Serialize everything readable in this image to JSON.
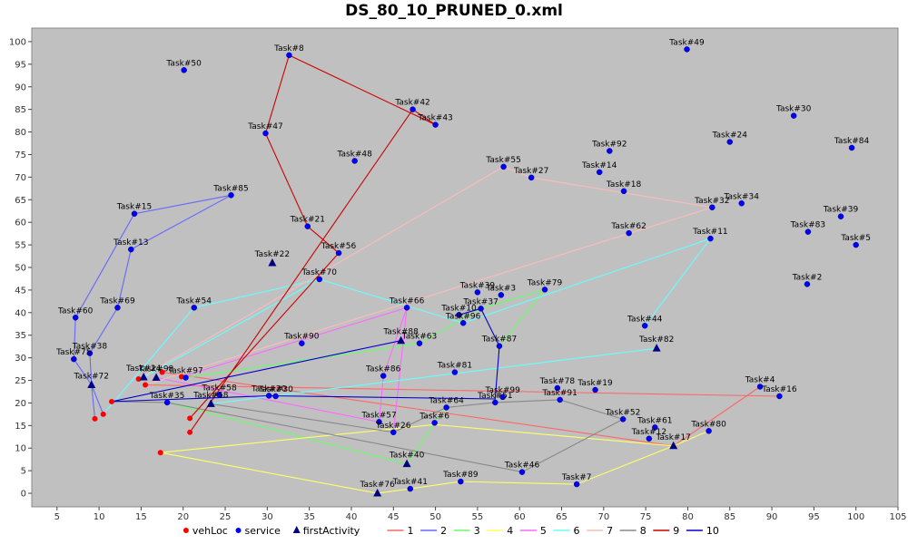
{
  "chart_data": {
    "type": "scatter",
    "title": "DS_80_10_PRUNED_0.xml",
    "xlabel": "",
    "ylabel": "",
    "xlim": [
      2,
      105
    ],
    "ylim": [
      -3,
      103
    ],
    "x_ticks": [
      5,
      10,
      15,
      20,
      25,
      30,
      35,
      40,
      45,
      50,
      55,
      60,
      65,
      70,
      75,
      80,
      85,
      90,
      95,
      100,
      105
    ],
    "y_ticks": [
      0,
      5,
      10,
      15,
      20,
      25,
      30,
      35,
      40,
      45,
      50,
      55,
      60,
      65,
      70,
      75,
      80,
      85,
      90,
      95,
      100
    ],
    "grid": false,
    "background": "#c0c0c0",
    "legend_position": "bottom",
    "legend": [
      {
        "label": "vehLoc",
        "marker": "circle",
        "color": "#ff0000"
      },
      {
        "label": "service",
        "marker": "circle",
        "color": "#0000ff"
      },
      {
        "label": "firstActivity",
        "marker": "triangle",
        "color": "#000080"
      },
      {
        "label": "1",
        "marker": "line",
        "color": "#ff6666"
      },
      {
        "label": "2",
        "marker": "line",
        "color": "#6666ff"
      },
      {
        "label": "3",
        "marker": "line",
        "color": "#66ff66"
      },
      {
        "label": "4",
        "marker": "line",
        "color": "#ffff66"
      },
      {
        "label": "5",
        "marker": "line",
        "color": "#ff66ff"
      },
      {
        "label": "6",
        "marker": "line",
        "color": "#66ffff"
      },
      {
        "label": "7",
        "marker": "line",
        "color": "#ffbbbb"
      },
      {
        "label": "8",
        "marker": "line",
        "color": "#888888"
      },
      {
        "label": "9",
        "marker": "line",
        "color": "#cc0000"
      },
      {
        "label": "10",
        "marker": "line",
        "color": "#0000cc"
      }
    ],
    "vehLoc": [
      {
        "x": 11.5,
        "y": 20.3
      },
      {
        "x": 9.5,
        "y": 16.5
      },
      {
        "x": 10.5,
        "y": 17.5
      },
      {
        "x": 14.7,
        "y": 25.3
      },
      {
        "x": 15.5,
        "y": 24.0
      },
      {
        "x": 17.5,
        "y": 26.8
      },
      {
        "x": 19.8,
        "y": 25.8
      },
      {
        "x": 17.3,
        "y": 9.0
      },
      {
        "x": 20.8,
        "y": 16.6
      },
      {
        "x": 20.8,
        "y": 13.5
      }
    ],
    "services": [
      {
        "label": "Task#50",
        "x": 20.1,
        "y": 93.7
      },
      {
        "label": "Task#8",
        "x": 32.6,
        "y": 97.0
      },
      {
        "label": "Task#49",
        "x": 79.9,
        "y": 98.3
      },
      {
        "label": "Task#42",
        "x": 47.3,
        "y": 85.0
      },
      {
        "label": "Task#43",
        "x": 50.0,
        "y": 81.6
      },
      {
        "label": "Task#47",
        "x": 29.8,
        "y": 79.7
      },
      {
        "label": "Task#30",
        "x": 92.6,
        "y": 83.6
      },
      {
        "label": "Task#24",
        "x": 85.0,
        "y": 77.8
      },
      {
        "label": "Task#84",
        "x": 99.5,
        "y": 76.5
      },
      {
        "label": "Task#92",
        "x": 70.7,
        "y": 75.8
      },
      {
        "label": "Task#48",
        "x": 40.4,
        "y": 73.6
      },
      {
        "label": "Task#55",
        "x": 58.1,
        "y": 72.3
      },
      {
        "label": "Task#27",
        "x": 61.4,
        "y": 69.9
      },
      {
        "label": "Task#14",
        "x": 69.5,
        "y": 71.1
      },
      {
        "label": "Task#18",
        "x": 72.4,
        "y": 66.9
      },
      {
        "label": "Task#85",
        "x": 25.7,
        "y": 66.0
      },
      {
        "label": "Task#34",
        "x": 86.4,
        "y": 64.2
      },
      {
        "label": "Task#32",
        "x": 82.9,
        "y": 63.3
      },
      {
        "label": "Task#15",
        "x": 14.2,
        "y": 61.9
      },
      {
        "label": "Task#39",
        "x": 98.2,
        "y": 61.3
      },
      {
        "label": "Task#21",
        "x": 34.8,
        "y": 59.1
      },
      {
        "label": "Task#83",
        "x": 94.3,
        "y": 57.9
      },
      {
        "label": "Task#62",
        "x": 73.0,
        "y": 57.6
      },
      {
        "label": "Task#11",
        "x": 82.7,
        "y": 56.4
      },
      {
        "label": "Task#5",
        "x": 100.0,
        "y": 55.0
      },
      {
        "label": "Task#13",
        "x": 13.8,
        "y": 54.0
      },
      {
        "label": "Task#56",
        "x": 38.5,
        "y": 53.2
      },
      {
        "label": "Task#70",
        "x": 36.2,
        "y": 47.4
      },
      {
        "label": "Task#2",
        "x": 94.2,
        "y": 46.3
      },
      {
        "label": "Task#79",
        "x": 63.0,
        "y": 45.1
      },
      {
        "label": "Task#39",
        "x": 55.0,
        "y": 44.5
      },
      {
        "label": "Task#3",
        "x": 57.8,
        "y": 43.9
      },
      {
        "label": "Task#69",
        "x": 12.2,
        "y": 41.1
      },
      {
        "label": "Task#54",
        "x": 21.3,
        "y": 41.1
      },
      {
        "label": "Task#66",
        "x": 46.6,
        "y": 41.1
      },
      {
        "label": "Task#37",
        "x": 55.4,
        "y": 40.9
      },
      {
        "label": "Task#10",
        "x": 52.8,
        "y": 39.5
      },
      {
        "label": "Task#60",
        "x": 7.2,
        "y": 38.9
      },
      {
        "label": "Task#96",
        "x": 53.3,
        "y": 37.7
      },
      {
        "label": "Task#44",
        "x": 74.9,
        "y": 37.1
      },
      {
        "label": "Task#90",
        "x": 34.1,
        "y": 33.2
      },
      {
        "label": "Task#63",
        "x": 48.1,
        "y": 33.2
      },
      {
        "label": "Task#87",
        "x": 57.6,
        "y": 32.6
      },
      {
        "label": "Task#38",
        "x": 8.9,
        "y": 31.0
      },
      {
        "label": "Task#75",
        "x": 7.0,
        "y": 29.7
      },
      {
        "label": "Task#81",
        "x": 52.3,
        "y": 26.8
      },
      {
        "label": "Task#86",
        "x": 43.8,
        "y": 26.0
      },
      {
        "label": "Task#97",
        "x": 20.3,
        "y": 25.6
      },
      {
        "label": "Task#78",
        "x": 64.5,
        "y": 23.3
      },
      {
        "label": "Task#19",
        "x": 69.0,
        "y": 22.9
      },
      {
        "label": "Task#4",
        "x": 88.6,
        "y": 23.6
      },
      {
        "label": "Task#99",
        "x": 58.0,
        "y": 21.3
      },
      {
        "label": "Task#16",
        "x": 90.9,
        "y": 21.5
      },
      {
        "label": "Task#20",
        "x": 30.2,
        "y": 21.6
      },
      {
        "label": "Task#30",
        "x": 31.0,
        "y": 21.5
      },
      {
        "label": "Task#91",
        "x": 64.8,
        "y": 20.7
      },
      {
        "label": "Task#51",
        "x": 57.1,
        "y": 20.1
      },
      {
        "label": "Task#35",
        "x": 18.1,
        "y": 20.1
      },
      {
        "label": "Task#58",
        "x": 24.3,
        "y": 21.8
      },
      {
        "label": "Task#64",
        "x": 51.3,
        "y": 19.0
      },
      {
        "label": "Task#57",
        "x": 43.3,
        "y": 15.8
      },
      {
        "label": "Task#52",
        "x": 72.3,
        "y": 16.4
      },
      {
        "label": "Task#6",
        "x": 49.9,
        "y": 15.6
      },
      {
        "label": "Task#26",
        "x": 45.0,
        "y": 13.5
      },
      {
        "label": "Task#80",
        "x": 82.5,
        "y": 13.8
      },
      {
        "label": "Task#61",
        "x": 76.1,
        "y": 14.6
      },
      {
        "label": "Task#12",
        "x": 75.4,
        "y": 12.1
      },
      {
        "label": "Task#46",
        "x": 60.3,
        "y": 4.7
      },
      {
        "label": "Task#89",
        "x": 53.0,
        "y": 2.6
      },
      {
        "label": "Task#7",
        "x": 66.8,
        "y": 2.0
      },
      {
        "label": "Task#41",
        "x": 47.0,
        "y": 1.0
      }
    ],
    "first_activities": [
      {
        "label": "Task#22",
        "x": 30.6,
        "y": 51.0
      },
      {
        "label": "Task#88",
        "x": 45.9,
        "y": 33.8
      },
      {
        "label": "Task#82",
        "x": 76.3,
        "y": 32.1
      },
      {
        "label": "Task#24",
        "x": 15.3,
        "y": 25.7
      },
      {
        "label": "Task#98",
        "x": 16.8,
        "y": 25.6
      },
      {
        "label": "Task#72",
        "x": 9.1,
        "y": 24.0
      },
      {
        "label": "Task#58",
        "x": 23.3,
        "y": 19.8
      },
      {
        "label": "Task#17",
        "x": 78.3,
        "y": 10.5
      },
      {
        "label": "Task#40",
        "x": 46.6,
        "y": 6.5
      },
      {
        "label": "Task#76",
        "x": 43.1,
        "y": 0.0
      }
    ],
    "routes": [
      {
        "name": "1",
        "color": "#ff6666",
        "points": [
          [
            15.5,
            24.0
          ],
          [
            91.0,
            21.5
          ]
        ]
      },
      {
        "name": "1",
        "color": "#ff6666",
        "points": [
          [
            17.5,
            26.8
          ],
          [
            78.3,
            10.5
          ],
          [
            88.6,
            23.6
          ]
        ]
      },
      {
        "name": "2",
        "color": "#6666ff",
        "points": [
          [
            10.5,
            17.5
          ],
          [
            9.1,
            24.0
          ],
          [
            7.0,
            29.7
          ],
          [
            7.2,
            38.9
          ],
          [
            14.2,
            61.9
          ],
          [
            25.7,
            66.0
          ],
          [
            13.8,
            54.0
          ],
          [
            12.2,
            41.1
          ],
          [
            8.9,
            31.0
          ],
          [
            9.1,
            24.0
          ],
          [
            9.5,
            16.5
          ]
        ]
      },
      {
        "name": "3",
        "color": "#66ff66",
        "points": [
          [
            18.1,
            20.1
          ],
          [
            46.6,
            6.5
          ],
          [
            49.9,
            15.6
          ],
          [
            51.3,
            19.0
          ]
        ]
      },
      {
        "name": "3",
        "color": "#66ff66",
        "points": [
          [
            20.3,
            25.6
          ],
          [
            48.1,
            33.2
          ],
          [
            55.4,
            40.9
          ],
          [
            63.0,
            45.1
          ],
          [
            57.6,
            32.6
          ]
        ]
      },
      {
        "name": "4",
        "color": "#ffff66",
        "points": [
          [
            17.3,
            9.0
          ],
          [
            43.1,
            0.0
          ],
          [
            47.0,
            1.0
          ],
          [
            53.0,
            2.6
          ],
          [
            66.8,
            2.0
          ],
          [
            78.3,
            10.5
          ],
          [
            82.5,
            13.8
          ]
        ]
      },
      {
        "name": "4",
        "color": "#ffff66",
        "points": [
          [
            17.3,
            9.0
          ],
          [
            49.9,
            15.2
          ],
          [
            78.3,
            10.5
          ]
        ]
      },
      {
        "name": "5",
        "color": "#ff66ff",
        "points": [
          [
            19.8,
            25.8
          ],
          [
            46.6,
            41.1
          ],
          [
            43.8,
            26.0
          ],
          [
            43.3,
            15.8
          ],
          [
            16.8,
            25.6
          ]
        ]
      },
      {
        "name": "5",
        "color": "#ff66ff",
        "points": [
          [
            46.6,
            41.1
          ],
          [
            45.0,
            13.5
          ]
        ]
      },
      {
        "name": "6",
        "color": "#66ffff",
        "points": [
          [
            10.5,
            17.5
          ],
          [
            21.3,
            41.1
          ],
          [
            36.2,
            47.4
          ],
          [
            53.3,
            37.7
          ],
          [
            82.7,
            56.4
          ],
          [
            74.9,
            37.1
          ]
        ]
      },
      {
        "name": "6",
        "color": "#66ffff",
        "points": [
          [
            15.3,
            25.7
          ],
          [
            36.2,
            47.4
          ]
        ]
      },
      {
        "name": "6",
        "color": "#66ffff",
        "points": [
          [
            23.3,
            19.8
          ],
          [
            76.3,
            32.1
          ]
        ]
      },
      {
        "name": "7",
        "color": "#ffbbbb",
        "points": [
          [
            14.7,
            25.3
          ],
          [
            58.1,
            72.3
          ],
          [
            61.4,
            69.9
          ],
          [
            82.9,
            63.3
          ],
          [
            15.5,
            24.0
          ]
        ]
      },
      {
        "name": "8",
        "color": "#888888",
        "points": [
          [
            11.5,
            20.3
          ],
          [
            18.1,
            20.1
          ],
          [
            60.3,
            4.7
          ],
          [
            72.3,
            16.4
          ],
          [
            64.8,
            20.7
          ],
          [
            57.1,
            20.1
          ],
          [
            51.3,
            19.0
          ],
          [
            45.0,
            13.5
          ],
          [
            23.3,
            19.8
          ]
        ]
      },
      {
        "name": "9",
        "color": "#cc0000",
        "points": [
          [
            20.8,
            13.5
          ],
          [
            47.3,
            85.0
          ],
          [
            50.0,
            81.6
          ],
          [
            32.6,
            97.0
          ],
          [
            29.8,
            79.7
          ],
          [
            34.8,
            59.1
          ],
          [
            38.5,
            53.2
          ],
          [
            20.8,
            16.6
          ]
        ]
      },
      {
        "name": "10",
        "color": "#0000cc",
        "points": [
          [
            11.5,
            20.3
          ],
          [
            45.9,
            33.8
          ]
        ]
      },
      {
        "name": "10",
        "color": "#0000cc",
        "points": [
          [
            11.5,
            20.3
          ],
          [
            30.2,
            21.6
          ],
          [
            57.1,
            20.9
          ],
          [
            57.6,
            32.6
          ],
          [
            55.4,
            40.9
          ],
          [
            52.8,
            39.5
          ]
        ]
      }
    ]
  }
}
